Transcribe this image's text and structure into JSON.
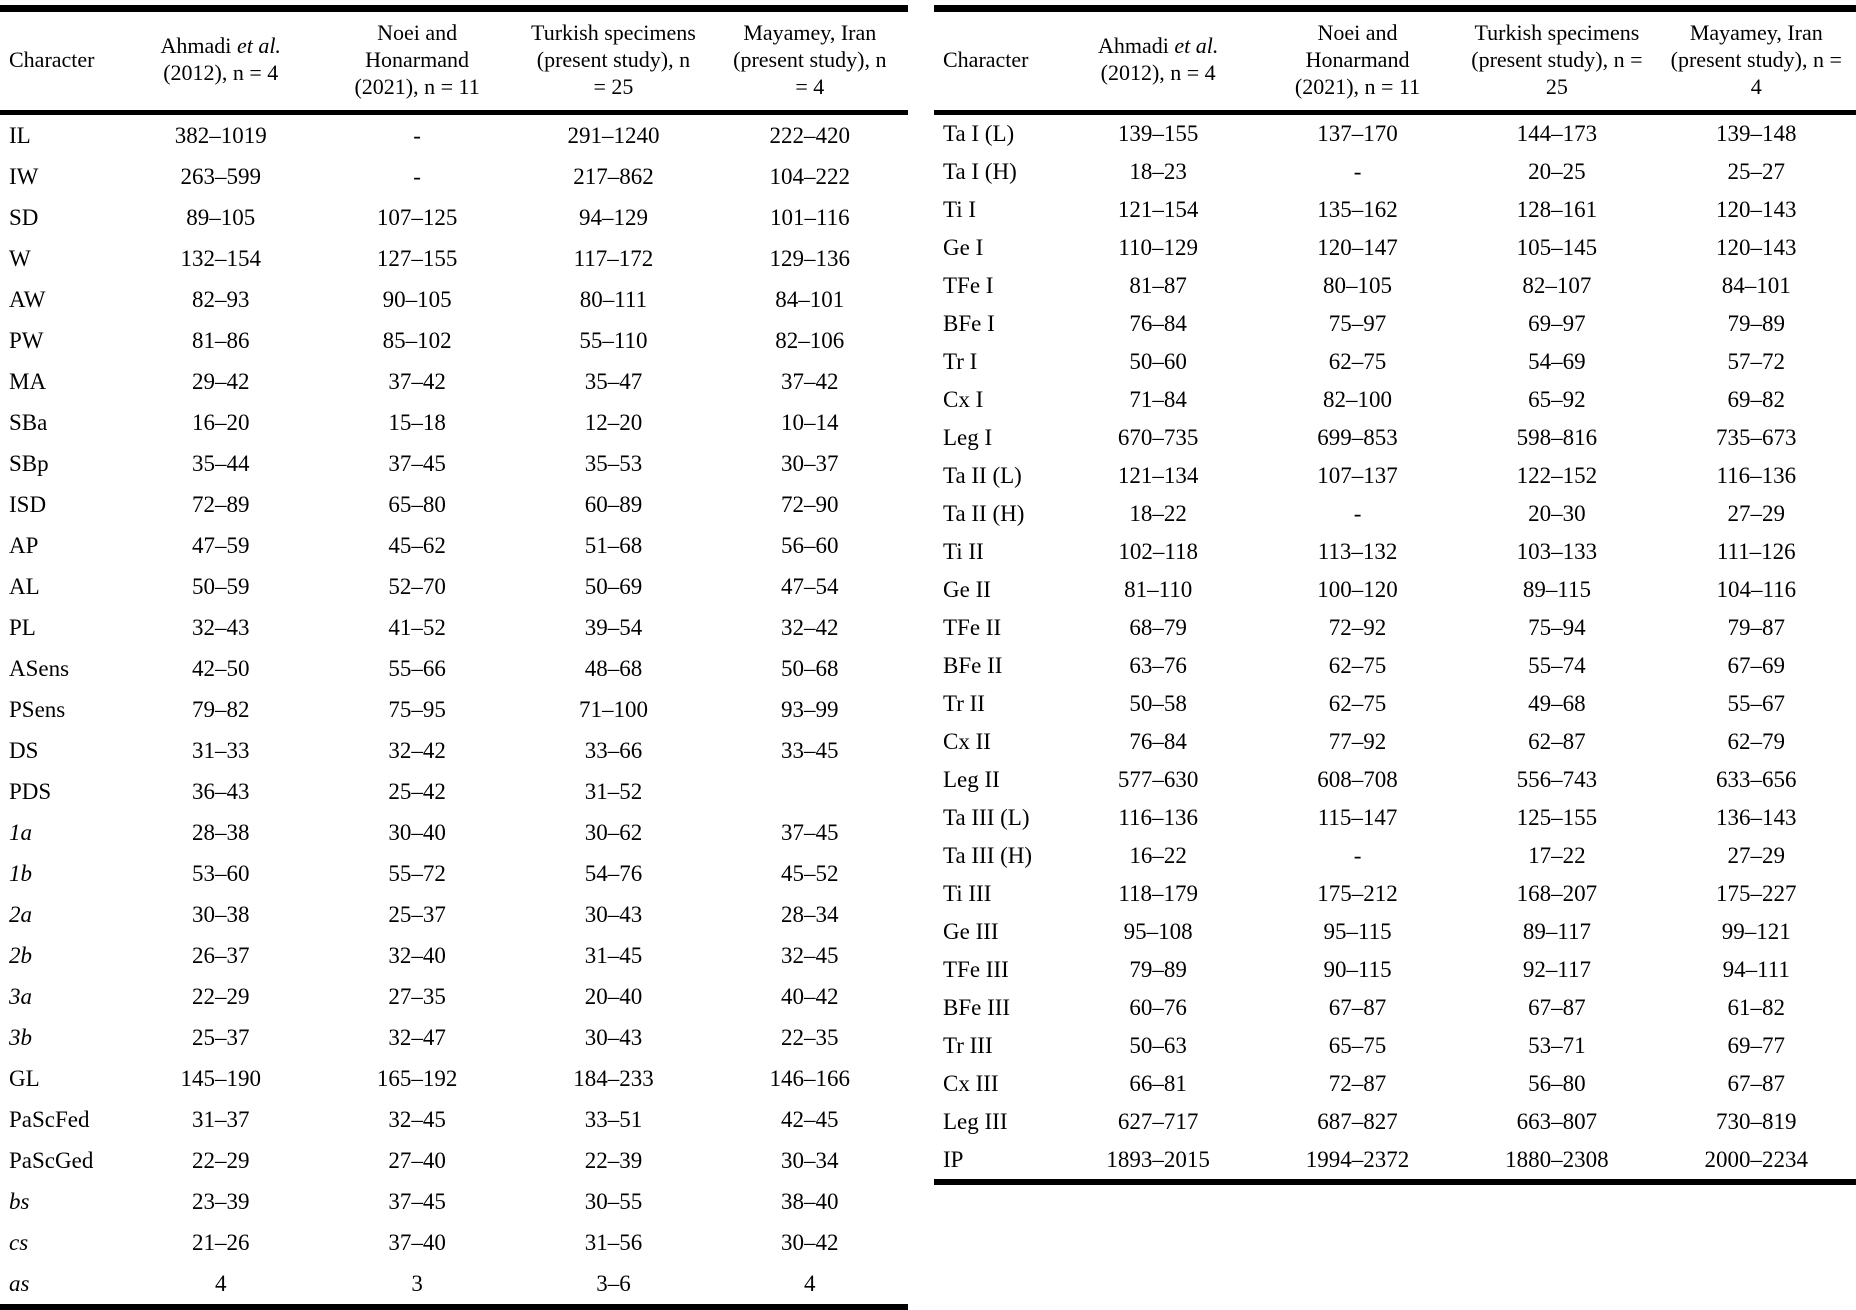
{
  "page": {
    "background": "#ffffff",
    "text_color": "#000000"
  },
  "tables": [
    {
      "id": "left",
      "columns": [
        {
          "align": "left",
          "segments": [
            {
              "text": "Character",
              "italic": false
            }
          ]
        },
        {
          "segments": [
            {
              "text": "Ahmadi ",
              "italic": false
            },
            {
              "text": "et al.",
              "italic": true
            },
            {
              "text": " (2012), n = 4",
              "italic": false
            }
          ]
        },
        {
          "segments": [
            {
              "text": "Noei and Honarmand (2021), n = 11",
              "italic": false
            }
          ]
        },
        {
          "segments": [
            {
              "text": "Turkish specimens (present study), n = 25",
              "italic": false
            }
          ]
        },
        {
          "segments": [
            {
              "text": "Mayamey, Iran (present study), n = 4",
              "italic": false
            }
          ]
        }
      ],
      "rows": [
        {
          "label": "IL",
          "italic": false,
          "values": [
            "382–1019",
            "-",
            "291–1240",
            "222–420"
          ]
        },
        {
          "label": "IW",
          "italic": false,
          "values": [
            "263–599",
            "-",
            "217–862",
            "104–222"
          ]
        },
        {
          "label": "SD",
          "italic": false,
          "values": [
            "89–105",
            "107–125",
            "94–129",
            "101–116"
          ]
        },
        {
          "label": "W",
          "italic": false,
          "values": [
            "132–154",
            "127–155",
            "117–172",
            "129–136"
          ]
        },
        {
          "label": "AW",
          "italic": false,
          "values": [
            "82–93",
            "90–105",
            "80–111",
            "84–101"
          ]
        },
        {
          "label": "PW",
          "italic": false,
          "values": [
            "81–86",
            "85–102",
            "55–110",
            "82–106"
          ]
        },
        {
          "label": "MA",
          "italic": false,
          "values": [
            "29–42",
            "37–42",
            "35–47",
            "37–42"
          ]
        },
        {
          "label": "SBa",
          "italic": false,
          "values": [
            "16–20",
            "15–18",
            "12–20",
            "10–14"
          ]
        },
        {
          "label": "SBp",
          "italic": false,
          "values": [
            "35–44",
            "37–45",
            "35–53",
            "30–37"
          ]
        },
        {
          "label": "ISD",
          "italic": false,
          "values": [
            "72–89",
            "65–80",
            "60–89",
            "72–90"
          ]
        },
        {
          "label": "AP",
          "italic": false,
          "values": [
            "47–59",
            "45–62",
            "51–68",
            "56–60"
          ]
        },
        {
          "label": "AL",
          "italic": false,
          "values": [
            "50–59",
            "52–70",
            "50–69",
            "47–54"
          ]
        },
        {
          "label": "PL",
          "italic": false,
          "values": [
            "32–43",
            "41–52",
            "39–54",
            "32–42"
          ]
        },
        {
          "label": "ASens",
          "italic": false,
          "values": [
            "42–50",
            "55–66",
            "48–68",
            "50–68"
          ]
        },
        {
          "label": "PSens",
          "italic": false,
          "values": [
            "79–82",
            "75–95",
            "71–100",
            "93–99"
          ]
        },
        {
          "label": "DS",
          "italic": false,
          "values": [
            "31–33",
            "32–42",
            "33–66",
            "33–45"
          ]
        },
        {
          "label": "PDS",
          "italic": false,
          "values": [
            "36–43",
            "25–42",
            "31–52",
            ""
          ]
        },
        {
          "label": "1a",
          "italic": true,
          "values": [
            "28–38",
            "30–40",
            "30–62",
            "37–45"
          ]
        },
        {
          "label": "1b",
          "italic": true,
          "values": [
            "53–60",
            "55–72",
            "54–76",
            "45–52"
          ]
        },
        {
          "label": "2a",
          "italic": true,
          "values": [
            "30–38",
            "25–37",
            "30–43",
            "28–34"
          ]
        },
        {
          "label": "2b",
          "italic": true,
          "values": [
            "26–37",
            "32–40",
            "31–45",
            "32–45"
          ]
        },
        {
          "label": "3a",
          "italic": true,
          "values": [
            "22–29",
            "27–35",
            "20–40",
            "40–42"
          ]
        },
        {
          "label": "3b",
          "italic": true,
          "values": [
            "25–37",
            "32–47",
            "30–43",
            "22–35"
          ]
        },
        {
          "label": "GL",
          "italic": false,
          "values": [
            "145–190",
            "165–192",
            "184–233",
            "146–166"
          ]
        },
        {
          "label": "PaScFed",
          "italic": false,
          "values": [
            "31–37",
            "32–45",
            "33–51",
            "42–45"
          ]
        },
        {
          "label": "PaScGed",
          "italic": false,
          "values": [
            "22–29",
            "27–40",
            "22–39",
            "30–34"
          ]
        },
        {
          "label": "bs",
          "italic": true,
          "values": [
            "23–39",
            "37–45",
            "30–55",
            "38–40"
          ]
        },
        {
          "label": "cs",
          "italic": true,
          "values": [
            "21–26",
            "37–40",
            "31–56",
            "30–42"
          ]
        },
        {
          "label": "as",
          "italic": true,
          "values": [
            "4",
            "3",
            "3–6",
            "4"
          ]
        }
      ]
    },
    {
      "id": "right",
      "columns": [
        {
          "align": "left",
          "segments": [
            {
              "text": "Character",
              "italic": false
            }
          ]
        },
        {
          "segments": [
            {
              "text": "Ahmadi ",
              "italic": false
            },
            {
              "text": "et al.",
              "italic": true
            },
            {
              "text": " (2012), n = 4",
              "italic": false
            }
          ]
        },
        {
          "segments": [
            {
              "text": "Noei and Honarmand (2021), n = 11",
              "italic": false
            }
          ]
        },
        {
          "segments": [
            {
              "text": "Turkish specimens (present study), n = 25",
              "italic": false
            }
          ]
        },
        {
          "segments": [
            {
              "text": "Mayamey, Iran (present study), n = 4",
              "italic": false
            }
          ]
        }
      ],
      "rows": [
        {
          "label": "Ta I (L)",
          "italic": false,
          "values": [
            "139–155",
            "137–170",
            "144–173",
            "139–148"
          ]
        },
        {
          "label": "Ta I (H)",
          "italic": false,
          "values": [
            "18–23",
            "-",
            "20–25",
            "25–27"
          ]
        },
        {
          "label": "Ti I",
          "italic": false,
          "values": [
            "121–154",
            "135–162",
            "128–161",
            "120–143"
          ]
        },
        {
          "label": "Ge I",
          "italic": false,
          "values": [
            "110–129",
            "120–147",
            "105–145",
            "120–143"
          ]
        },
        {
          "label": "TFe I",
          "italic": false,
          "values": [
            "81–87",
            "80–105",
            "82–107",
            "84–101"
          ]
        },
        {
          "label": "BFe I",
          "italic": false,
          "values": [
            "76–84",
            "75–97",
            "69–97",
            "79–89"
          ]
        },
        {
          "label": "Tr I",
          "italic": false,
          "values": [
            "50–60",
            "62–75",
            "54–69",
            "57–72"
          ]
        },
        {
          "label": "Cx I",
          "italic": false,
          "values": [
            "71–84",
            "82–100",
            "65–92",
            "69–82"
          ]
        },
        {
          "label": "Leg I",
          "italic": false,
          "values": [
            "670–735",
            "699–853",
            "598–816",
            "735–673"
          ]
        },
        {
          "label": "Ta II (L)",
          "italic": false,
          "values": [
            "121–134",
            "107–137",
            "122–152",
            "116–136"
          ]
        },
        {
          "label": "Ta II (H)",
          "italic": false,
          "values": [
            "18–22",
            "-",
            "20–30",
            "27–29"
          ]
        },
        {
          "label": "Ti II",
          "italic": false,
          "values": [
            "102–118",
            "113–132",
            "103–133",
            "111–126"
          ]
        },
        {
          "label": "Ge II",
          "italic": false,
          "values": [
            "81–110",
            "100–120",
            "89–115",
            "104–116"
          ]
        },
        {
          "label": "TFe II",
          "italic": false,
          "values": [
            "68–79",
            "72–92",
            "75–94",
            "79–87"
          ]
        },
        {
          "label": "BFe II",
          "italic": false,
          "values": [
            "63–76",
            "62–75",
            "55–74",
            "67–69"
          ]
        },
        {
          "label": "Tr II",
          "italic": false,
          "values": [
            "50–58",
            "62–75",
            "49–68",
            "55–67"
          ]
        },
        {
          "label": "Cx II",
          "italic": false,
          "values": [
            "76–84",
            "77–92",
            "62–87",
            "62–79"
          ]
        },
        {
          "label": "Leg II",
          "italic": false,
          "values": [
            "577–630",
            "608–708",
            "556–743",
            "633–656"
          ]
        },
        {
          "label": "Ta III (L)",
          "italic": false,
          "values": [
            "116–136",
            "115–147",
            "125–155",
            "136–143"
          ]
        },
        {
          "label": "Ta III (H)",
          "italic": false,
          "values": [
            "16–22",
            "-",
            "17–22",
            "27–29"
          ]
        },
        {
          "label": "Ti III",
          "italic": false,
          "values": [
            "118–179",
            "175–212",
            "168–207",
            "175–227"
          ]
        },
        {
          "label": "Ge III",
          "italic": false,
          "values": [
            "95–108",
            "95–115",
            "89–117",
            "99–121"
          ]
        },
        {
          "label": "TFe III",
          "italic": false,
          "values": [
            "79–89",
            "90–115",
            "92–117",
            "94–111"
          ]
        },
        {
          "label": "BFe III",
          "italic": false,
          "values": [
            "60–76",
            "67–87",
            "67–87",
            "61–82"
          ]
        },
        {
          "label": "Tr III",
          "italic": false,
          "values": [
            "50–63",
            "65–75",
            "53–71",
            "69–77"
          ]
        },
        {
          "label": "Cx III",
          "italic": false,
          "values": [
            "66–81",
            "72–87",
            "56–80",
            "67–87"
          ]
        },
        {
          "label": "Leg III",
          "italic": false,
          "values": [
            "627–717",
            "687–827",
            "663–807",
            "730–819"
          ]
        },
        {
          "label": "IP",
          "italic": false,
          "values": [
            "1893–2015",
            "1994–2372",
            "1880–2308",
            "2000–2234"
          ]
        }
      ]
    }
  ]
}
